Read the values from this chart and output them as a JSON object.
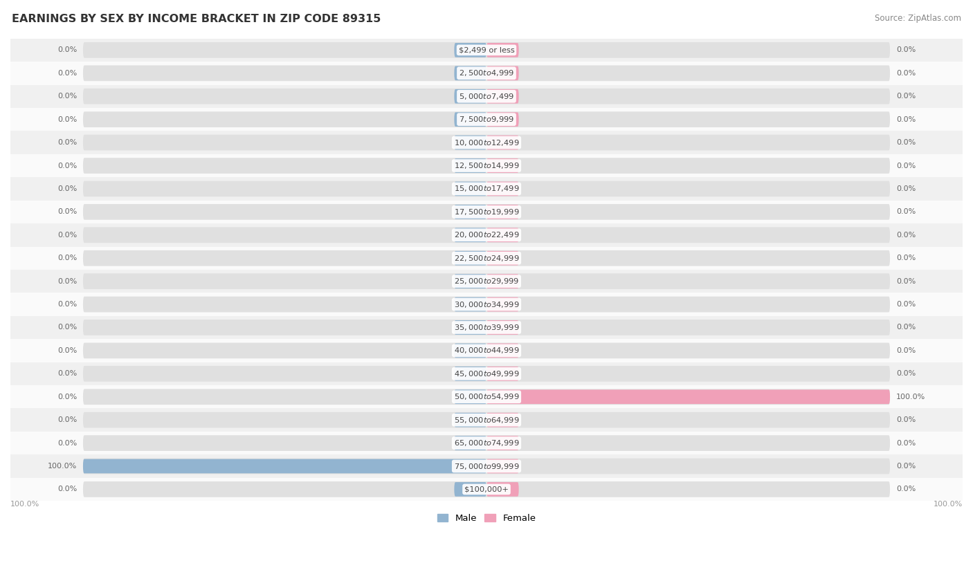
{
  "title": "EARNINGS BY SEX BY INCOME BRACKET IN ZIP CODE 89315",
  "source": "Source: ZipAtlas.com",
  "categories": [
    "$2,499 or less",
    "$2,500 to $4,999",
    "$5,000 to $7,499",
    "$7,500 to $9,999",
    "$10,000 to $12,499",
    "$12,500 to $14,999",
    "$15,000 to $17,499",
    "$17,500 to $19,999",
    "$20,000 to $22,499",
    "$22,500 to $24,999",
    "$25,000 to $29,999",
    "$30,000 to $34,999",
    "$35,000 to $39,999",
    "$40,000 to $44,999",
    "$45,000 to $49,999",
    "$50,000 to $54,999",
    "$55,000 to $64,999",
    "$65,000 to $74,999",
    "$75,000 to $99,999",
    "$100,000+"
  ],
  "male_values": [
    0.0,
    0.0,
    0.0,
    0.0,
    0.0,
    0.0,
    0.0,
    0.0,
    0.0,
    0.0,
    0.0,
    0.0,
    0.0,
    0.0,
    0.0,
    0.0,
    0.0,
    0.0,
    100.0,
    0.0
  ],
  "female_values": [
    0.0,
    0.0,
    0.0,
    0.0,
    0.0,
    0.0,
    0.0,
    0.0,
    0.0,
    0.0,
    0.0,
    0.0,
    0.0,
    0.0,
    0.0,
    100.0,
    0.0,
    0.0,
    0.0,
    0.0
  ],
  "male_color": "#92b4d0",
  "female_color": "#f0a0b8",
  "pill_bg_color": "#e0e0e0",
  "row_bg_even": "#f0f0f0",
  "row_bg_odd": "#fafafa",
  "label_color": "#444444",
  "title_color": "#333333",
  "source_color": "#888888",
  "value_label_color": "#666666",
  "max_value": 100.0,
  "min_colored_segment": 8.0,
  "figsize": [
    14.06,
    8.14
  ],
  "dpi": 100
}
